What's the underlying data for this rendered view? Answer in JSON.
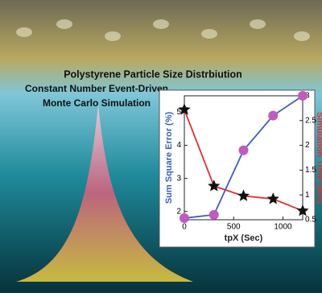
{
  "header": {
    "title": "Polystyrene Particle Size Distrbiution",
    "line2": "Constant Number Event-Driven",
    "line3": "Monte Carlo Simulation"
  },
  "chart_data": {
    "type": "line",
    "x_label": "tpX (Sec)",
    "y_label": "Sum Square Error (%)",
    "y2_label": "Simulation Time (Min)",
    "xlim": [
      0,
      1200
    ],
    "xticks": [
      0,
      500,
      1000
    ],
    "ylim": [
      1.75,
      5.5
    ],
    "yticks": [
      2,
      3,
      4,
      5
    ],
    "y2lim": [
      0.5,
      3
    ],
    "y2ticks": [
      0.5,
      1,
      1.5,
      2,
      2.5,
      3
    ],
    "series": [
      {
        "name": "Sum Square Error",
        "color": "#3b5fc0",
        "marker_color": "#c05bc0",
        "marker": "circle",
        "x": [
          0,
          300,
          600,
          900,
          1200
        ],
        "values": [
          1.8,
          1.9,
          3.85,
          4.9,
          5.5
        ]
      },
      {
        "name": "Simulation Time",
        "color": "#e03030",
        "marker_color": "#111111",
        "marker": "star",
        "axis": "y2",
        "x": [
          0,
          300,
          600,
          900,
          1200
        ],
        "values": [
          2.72,
          1.18,
          0.98,
          0.92,
          0.68
        ]
      }
    ]
  }
}
